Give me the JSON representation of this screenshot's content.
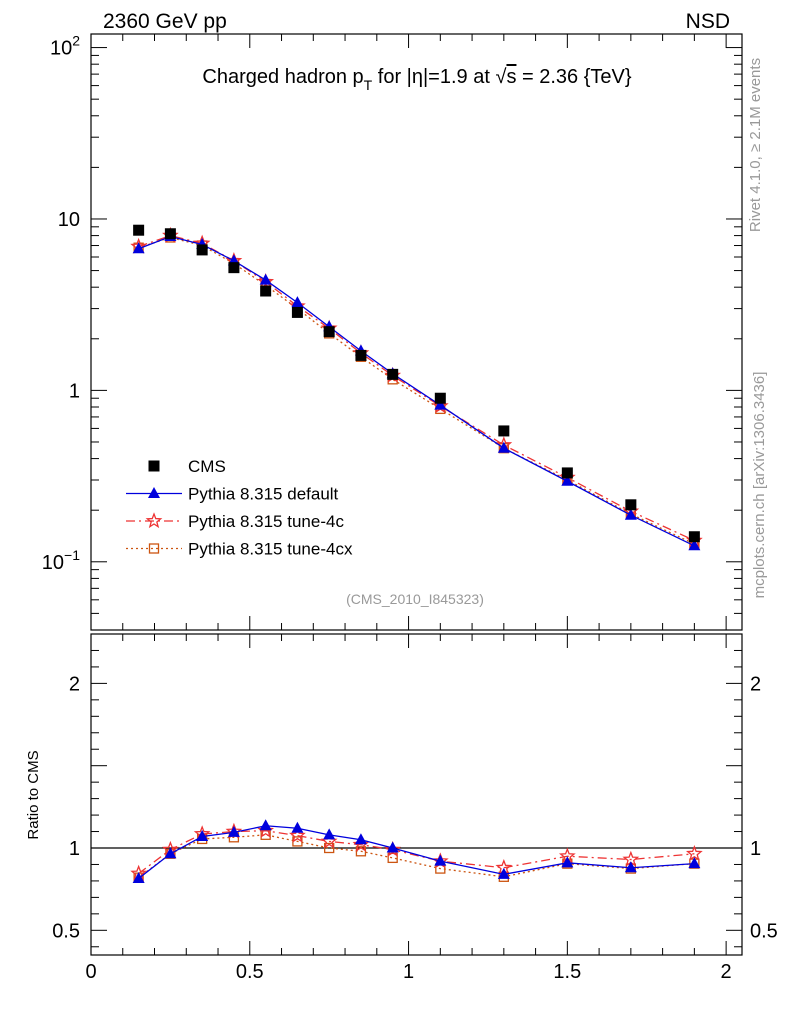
{
  "header": {
    "left": "2360 GeV pp",
    "right": "NSD"
  },
  "side": {
    "rivet": "Rivet 4.1.0, ≥ 2.1M events",
    "mcplots": "mcplots.cern.ch [arXiv:1306.3436]"
  },
  "chart_data": {
    "type": "scatter",
    "title": "Charged hadron p_T for |η|=1.9 at √s = 2.36 {TeV}",
    "title_parts": {
      "main": "Charged hadron p",
      "sub": "T",
      "mid": " for |η|=1.9 at ",
      "sqrt": "√",
      "s": "s",
      "end": " = 2.36 {TeV}"
    },
    "watermark": "(CMS_2010_I845323)",
    "top_panel": {
      "yscale": "log",
      "ylim": [
        0.04,
        120
      ],
      "yticks": [
        {
          "value": 0.1,
          "base": "10",
          "exp": "−1"
        },
        {
          "value": 1,
          "label": "1"
        },
        {
          "value": 10,
          "label": "10"
        },
        {
          "value": 100,
          "base": "10",
          "exp": "2"
        }
      ]
    },
    "ratio_panel": {
      "ylabel": "Ratio to CMS",
      "ylim": [
        0.35,
        2.3
      ],
      "yticks": [
        {
          "value": 0.5,
          "label": "0.5"
        },
        {
          "value": 1,
          "label": "1"
        },
        {
          "value": 2,
          "label": "2"
        }
      ],
      "reference": 1
    },
    "xlim": [
      0,
      2.05
    ],
    "xticks": [
      {
        "value": 0,
        "label": "0"
      },
      {
        "value": 0.5,
        "label": "0.5"
      },
      {
        "value": 1,
        "label": "1"
      },
      {
        "value": 1.5,
        "label": "1.5"
      },
      {
        "value": 2,
        "label": "2"
      }
    ],
    "x": [
      0.15,
      0.25,
      0.35,
      0.45,
      0.55,
      0.65,
      0.75,
      0.85,
      0.95,
      1.1,
      1.3,
      1.5,
      1.7,
      1.9
    ],
    "series": [
      {
        "name": "CMS",
        "color": "#000000",
        "marker": "square-filled",
        "line": "none",
        "values": [
          8.6,
          8.2,
          6.6,
          5.2,
          3.8,
          2.85,
          2.2,
          1.6,
          1.24,
          0.9,
          0.58,
          0.33,
          0.215,
          0.14
        ]
      },
      {
        "name": "Pythia 8.315 default",
        "color": "#0000dd",
        "marker": "triangle-filled",
        "line": "solid",
        "values": [
          6.7,
          7.9,
          7.1,
          5.7,
          4.4,
          3.25,
          2.35,
          1.7,
          1.25,
          0.82,
          0.46,
          0.295,
          0.187,
          0.124
        ],
        "ratio": [
          0.815,
          0.965,
          1.07,
          1.095,
          1.135,
          1.12,
          1.08,
          1.05,
          1.0,
          0.92,
          0.84,
          0.91,
          0.88,
          0.905
        ]
      },
      {
        "name": "Pythia 8.315 tune-4c",
        "color": "#ee3333",
        "marker": "star-open",
        "line": "dashdot",
        "values": [
          6.9,
          8.0,
          7.2,
          5.7,
          4.3,
          3.1,
          2.3,
          1.65,
          1.22,
          0.81,
          0.48,
          0.31,
          0.197,
          0.133
        ],
        "ratio": [
          0.845,
          0.99,
          1.085,
          1.1,
          1.105,
          1.075,
          1.04,
          1.02,
          0.99,
          0.92,
          0.88,
          0.95,
          0.93,
          0.965
        ]
      },
      {
        "name": "Pythia 8.315 tune-4cx",
        "color": "#cc5511",
        "marker": "square-open",
        "line": "dotted",
        "values": [
          6.8,
          7.8,
          7.0,
          5.5,
          4.1,
          3.0,
          2.15,
          1.57,
          1.16,
          0.78,
          0.46,
          0.3,
          0.19,
          0.127
        ],
        "ratio": [
          0.82,
          0.965,
          1.055,
          1.065,
          1.08,
          1.04,
          1.0,
          0.98,
          0.94,
          0.875,
          0.825,
          0.905,
          0.875,
          0.905
        ]
      }
    ]
  }
}
